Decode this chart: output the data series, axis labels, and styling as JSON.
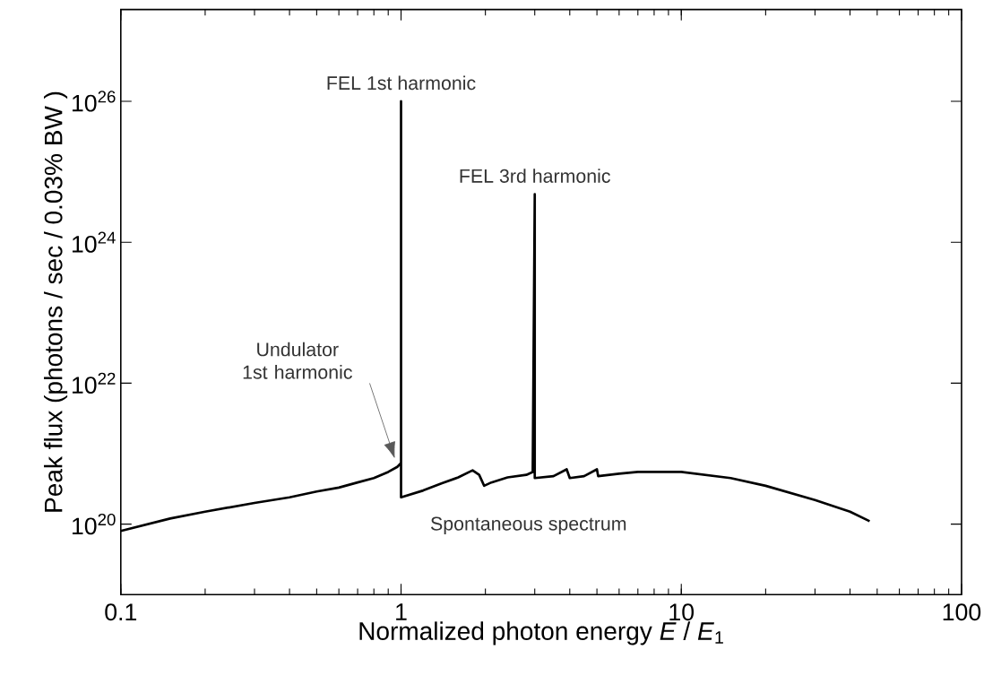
{
  "chart_data": {
    "type": "line",
    "xlabel": "Normalized photon energy  *E* / *E*$_{1}$",
    "ylabel": "Peak flux  (photons / sec / 0.03% BW )",
    "log": "xy",
    "xlim": [
      0.1,
      100
    ],
    "ylim": [
      1e+19,
      2e+27
    ],
    "xticks": [
      0.1,
      1,
      10,
      100
    ],
    "yticks": [
      {
        "value": 1e+20,
        "label": "10$^{20}$"
      },
      {
        "value": 1e+22,
        "label": "10$^{22}$"
      },
      {
        "value": 1e+24,
        "label": "10$^{24}$"
      },
      {
        "value": 1e+26,
        "label": "10$^{26}$"
      }
    ],
    "series": [
      {
        "color": "#000000",
        "x": [
          0.1,
          0.15,
          0.2,
          0.3,
          0.4,
          0.5,
          0.6,
          0.7,
          0.8,
          0.9,
          0.97,
          1,
          1,
          1,
          1.2,
          1.4,
          1.6,
          1.8,
          1.9,
          1.98,
          2.1,
          2.4,
          2.8,
          2.95,
          3,
          3,
          3.5,
          3.9,
          4,
          4.5,
          5,
          5.05,
          6,
          7,
          8,
          10,
          15,
          20,
          30,
          40,
          47
        ],
        "values": [
          8e+19,
          1.2e+20,
          1.5e+20,
          2e+20,
          2.4e+20,
          2.9e+20,
          3.3e+20,
          3.9e+20,
          4.5e+20,
          5.5e+20,
          6.5e+20,
          7.4e+20,
          1e+26,
          2.4e+20,
          3e+20,
          3.8e+20,
          4.6e+20,
          5.8e+20,
          5e+20,
          3.5e+20,
          3.9e+20,
          4.6e+20,
          5e+20,
          5.5e+20,
          4.8e+24,
          4.5e+20,
          4.8e+20,
          6e+20,
          4.5e+20,
          4.8e+20,
          6e+20,
          4.8e+20,
          5.2e+20,
          5.5e+20,
          5.5e+20,
          5.5e+20,
          4.5e+20,
          3.5e+20,
          2.2e+20,
          1.5e+20,
          1.1e+20
        ]
      }
    ],
    "annotations": [
      {
        "text": "FEL 1st harmonic",
        "x": 1,
        "y": 1e+26
      },
      {
        "text": "FEL 3rd harmonic",
        "x": 3,
        "y": 4.8e+24
      },
      "Undulator 1st harmonic",
      "Spontaneous spectrum"
    ]
  }
}
